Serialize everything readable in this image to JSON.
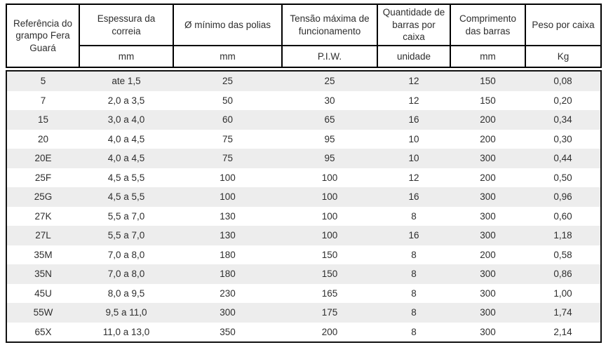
{
  "table": {
    "columns": [
      {
        "label": "Referência do grampo Fera Guará",
        "unit": ""
      },
      {
        "label": "Espessura da correia",
        "unit": "mm"
      },
      {
        "label": "Ø mínimo das polias",
        "unit": "mm"
      },
      {
        "label": "Tensão máxima de funcionamento",
        "unit": "P.I.W."
      },
      {
        "label": "Quantidade de barras por caixa",
        "unit": "unidade"
      },
      {
        "label": "Comprimento das barras",
        "unit": "mm"
      },
      {
        "label": "Peso por caixa",
        "unit": "Kg"
      }
    ],
    "rows": [
      [
        "5",
        "ate 1,5",
        "25",
        "25",
        "12",
        "150",
        "0,08"
      ],
      [
        "7",
        "2,0 a 3,5",
        "50",
        "30",
        "12",
        "150",
        "0,20"
      ],
      [
        "15",
        "3,0 a 4,0",
        "60",
        "65",
        "16",
        "200",
        "0,34"
      ],
      [
        "20",
        "4,0 a 4,5",
        "75",
        "95",
        "10",
        "200",
        "0,30"
      ],
      [
        "20E",
        "4,0 a 4,5",
        "75",
        "95",
        "10",
        "300",
        "0,44"
      ],
      [
        "25F",
        "4,5 a 5,5",
        "100",
        "100",
        "12",
        "200",
        "0,50"
      ],
      [
        "25G",
        "4,5 a 5,5",
        "100",
        "100",
        "16",
        "300",
        "0,96"
      ],
      [
        "27K",
        "5,5 a 7,0",
        "130",
        "100",
        "8",
        "300",
        "0,60"
      ],
      [
        "27L",
        "5,5 a 7,0",
        "130",
        "100",
        "16",
        "300",
        "1,18"
      ],
      [
        "35M",
        "7,0 a 8,0",
        "180",
        "150",
        "8",
        "200",
        "0,58"
      ],
      [
        "35N",
        "7,0 a 8,0",
        "180",
        "150",
        "8",
        "300",
        "0,86"
      ],
      [
        "45U",
        "8,0 a 9,5",
        "230",
        "165",
        "8",
        "300",
        "1,00"
      ],
      [
        "55W",
        "9,5 a 11,0",
        "300",
        "175",
        "8",
        "300",
        "1,74"
      ],
      [
        "65X",
        "11,0 a 13,0",
        "350",
        "200",
        "8",
        "300",
        "2,14"
      ]
    ]
  },
  "colors": {
    "border": "#000000",
    "stripe": "#ededed",
    "text": "#2e2e2e",
    "background": "#ffffff"
  }
}
